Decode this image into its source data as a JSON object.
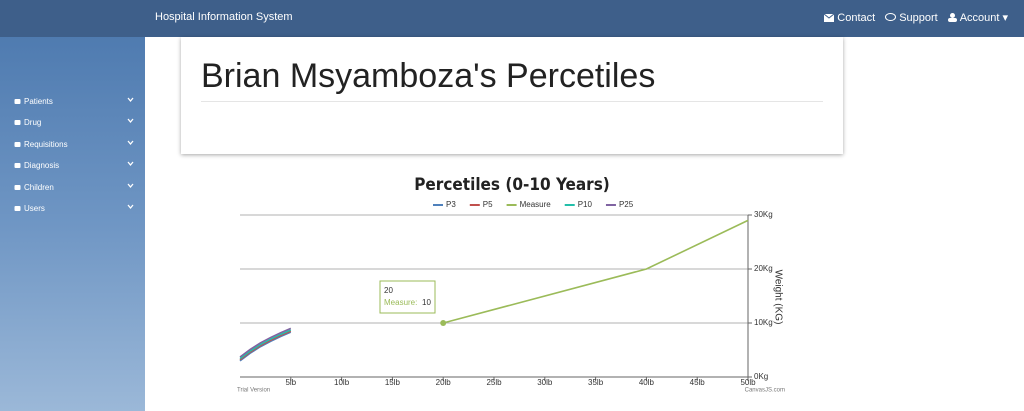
{
  "navbar": {
    "brand": "Hospital Information System",
    "links": [
      "Contact",
      "Support",
      "Account"
    ]
  },
  "sidebar": {
    "items": [
      "Patients",
      "Drug",
      "Requisitions",
      "Diagnosis",
      "Children",
      "Users"
    ]
  },
  "header": {
    "title": "Brian Msyamboza's Percetiles"
  },
  "chart_data": {
    "type": "line",
    "title": "Percetiles (0-10 Years)",
    "y_label": "Weight (KG)",
    "xlim": [
      0,
      50
    ],
    "xticks": [
      {
        "value": 5,
        "label": "5lb"
      },
      {
        "value": 10,
        "label": "10lb"
      },
      {
        "value": 15,
        "label": "15lb"
      },
      {
        "value": 20,
        "label": "20lb"
      },
      {
        "value": 25,
        "label": "25lb"
      },
      {
        "value": 30,
        "label": "30lb"
      },
      {
        "value": 35,
        "label": "35lb"
      },
      {
        "value": 40,
        "label": "40lb"
      },
      {
        "value": 45,
        "label": "45lb"
      },
      {
        "value": 50,
        "label": "50lb"
      }
    ],
    "y2lim": [
      0,
      30
    ],
    "y2ticks": [
      {
        "value": 0,
        "label": "0Kg"
      },
      {
        "value": 10,
        "label": "10Kg"
      },
      {
        "value": 20,
        "label": "20Kg"
      },
      {
        "value": 30,
        "label": "30Kg"
      }
    ],
    "grid": true,
    "series": [
      {
        "name": "P3",
        "color": "#4f81bc",
        "axis": "y2",
        "x": [
          0,
          1,
          2,
          3,
          4,
          5
        ],
        "values": [
          3.0,
          4.4,
          5.6,
          6.6,
          7.5,
          8.3
        ]
      },
      {
        "name": "P5",
        "color": "#c0504d",
        "axis": "y2",
        "x": [
          0,
          1,
          2,
          3,
          4,
          5
        ],
        "values": [
          3.2,
          4.6,
          5.8,
          6.8,
          7.7,
          8.5
        ]
      },
      {
        "name": "Measure",
        "color": "#9bbb59",
        "axis": "y2",
        "x": [
          20,
          40,
          50
        ],
        "values": [
          10,
          20,
          29
        ]
      },
      {
        "name": "P10",
        "color": "#23bfaa",
        "axis": "y2",
        "x": [
          0,
          1,
          2,
          3,
          4,
          5
        ],
        "values": [
          3.4,
          4.8,
          6.0,
          7.0,
          7.9,
          8.7
        ]
      },
      {
        "name": "P25",
        "color": "#8064a2",
        "axis": "y2",
        "x": [
          0,
          1,
          2,
          3,
          4,
          5
        ],
        "values": [
          3.7,
          5.1,
          6.3,
          7.3,
          8.2,
          9.0
        ]
      }
    ],
    "tooltip": {
      "x": 20,
      "label": "Measure:",
      "value": 10
    },
    "watermark": "Trial Version",
    "credit": "CanvasJS.com"
  }
}
